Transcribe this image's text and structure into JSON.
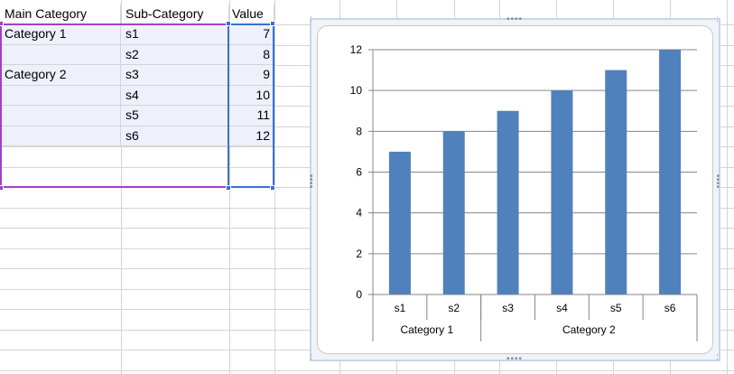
{
  "table": {
    "headers": [
      "Main Category",
      "Sub-Category",
      "Value"
    ],
    "rows": [
      {
        "main": "Category 1",
        "sub": "s1",
        "value": "7"
      },
      {
        "main": "",
        "sub": "s2",
        "value": "8"
      },
      {
        "main": "Category 2",
        "sub": "s3",
        "value": "9"
      },
      {
        "main": "",
        "sub": "s4",
        "value": "10"
      },
      {
        "main": "",
        "sub": "s5",
        "value": "11"
      },
      {
        "main": "",
        "sub": "s6",
        "value": "12"
      }
    ]
  },
  "colors": {
    "bar": "#4f81bd",
    "range_category": "#a040c8",
    "range_value": "#3a6fd8",
    "selection_fill": "#eef1fb",
    "gridline": "#868686"
  },
  "icons": {
    "resize_handle": "dotted-grip-icon"
  },
  "chart_data": {
    "type": "bar",
    "categories": [
      "s1",
      "s2",
      "s3",
      "s4",
      "s5",
      "s6"
    ],
    "groups": [
      {
        "label": "Category 1",
        "members": [
          "s1",
          "s2"
        ]
      },
      {
        "label": "Category 2",
        "members": [
          "s3",
          "s4",
          "s5",
          "s6"
        ]
      }
    ],
    "series": [
      {
        "values": [
          7,
          8,
          9,
          10,
          11,
          12
        ]
      }
    ],
    "ylim": [
      0,
      12
    ],
    "yticks": [
      0,
      2,
      4,
      6,
      8,
      10,
      12
    ],
    "grid": "horizontal",
    "legend": "none"
  }
}
